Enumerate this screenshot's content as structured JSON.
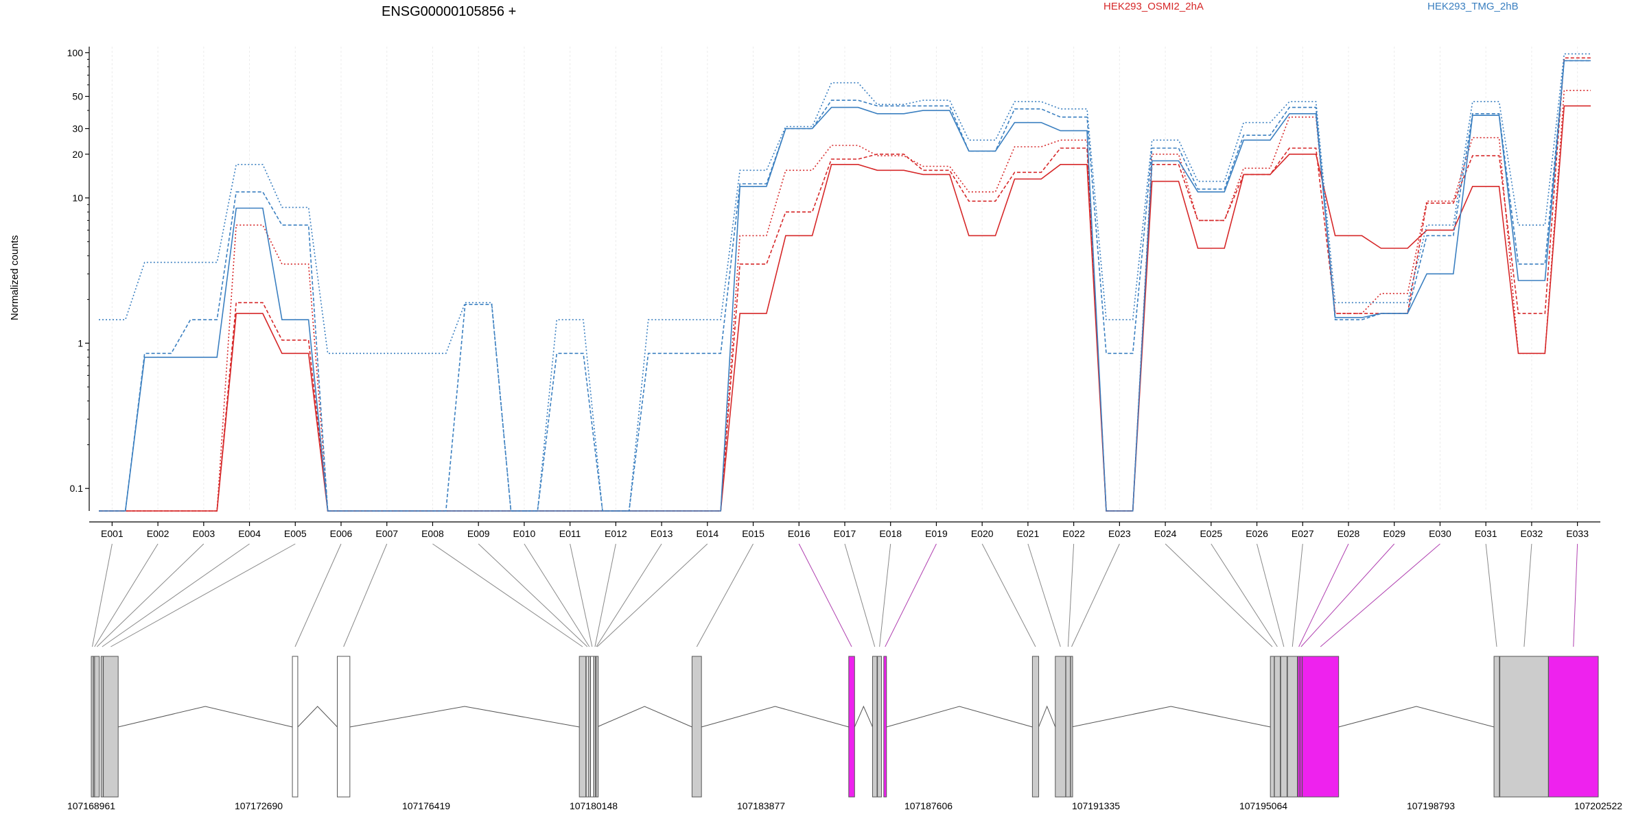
{
  "chart_data": {
    "type": "line",
    "title": "ENSG00000105856 +",
    "ylabel": "Normalized counts",
    "yscale": "log",
    "ylim": [
      0.07,
      110
    ],
    "yticks": [
      0.1,
      1,
      10,
      20,
      30,
      50,
      100
    ],
    "ytick_labels": [
      "0.1",
      "1",
      "10",
      "20",
      "30",
      "50",
      "100"
    ],
    "grid": true,
    "legend_position": "top",
    "colors": {
      "HEK293_OSMI2_2hA": "#d62728",
      "HEK293_TMG_2hB": "#3a7fc0"
    },
    "exons": [
      "E001",
      "E002",
      "E003",
      "E004",
      "E005",
      "E006",
      "E007",
      "E008",
      "E009",
      "E010",
      "E011",
      "E012",
      "E013",
      "E014",
      "E015",
      "E016",
      "E017",
      "E018",
      "E019",
      "E020",
      "E021",
      "E022",
      "E023",
      "E024",
      "E025",
      "E026",
      "E027",
      "E028",
      "E029",
      "E030",
      "E031",
      "E032",
      "E033"
    ],
    "series": [
      {
        "name": "HEK293_OSMI2_2hA",
        "group": "HEK293_OSMI2_2hA",
        "dash": "dotted",
        "values": [
          0.07,
          0.07,
          0.07,
          6.5,
          3.5,
          0.07,
          0.07,
          0.07,
          0.07,
          0.07,
          0.07,
          0.07,
          0.07,
          0.07,
          5.5,
          15.5,
          23,
          19.5,
          16.5,
          11,
          22.5,
          25,
          0.07,
          20,
          7,
          16,
          36,
          1.6,
          2.2,
          9.5,
          26,
          0.85,
          55
        ]
      },
      {
        "name": "HEK293_OSMI2_2hA",
        "group": "HEK293_OSMI2_2hA",
        "dash": "dashed",
        "values": [
          0.07,
          0.07,
          0.07,
          1.9,
          1.05,
          0.07,
          0.07,
          0.07,
          0.07,
          0.07,
          0.07,
          0.07,
          0.07,
          0.07,
          3.5,
          8,
          18.5,
          20,
          15.5,
          9.5,
          15,
          22,
          0.07,
          17,
          7,
          14.5,
          22,
          1.6,
          1.6,
          9.2,
          19.5,
          1.6,
          92
        ]
      },
      {
        "name": "HEK293_OSMI2_2hA",
        "group": "HEK293_OSMI2_2hA",
        "dash": "solid",
        "values": [
          0.07,
          0.07,
          0.07,
          1.6,
          0.85,
          0.07,
          0.07,
          0.07,
          0.07,
          0.07,
          0.07,
          0.07,
          0.07,
          0.07,
          1.6,
          5.5,
          17,
          15.5,
          14.5,
          5.5,
          13.5,
          17,
          0.07,
          13,
          4.5,
          14.5,
          20,
          5.5,
          4.5,
          6,
          12,
          0.85,
          43
        ]
      },
      {
        "name": "HEK293_TMG_2hB",
        "group": "HEK293_TMG_2hB",
        "dash": "dotted",
        "values": [
          1.45,
          3.6,
          3.6,
          17,
          8.6,
          0.85,
          0.85,
          0.85,
          1.9,
          0.07,
          1.45,
          0.07,
          1.45,
          1.45,
          15.5,
          31,
          62,
          44,
          47,
          25,
          46,
          41,
          1.45,
          25,
          13,
          33,
          46,
          1.9,
          1.9,
          6.5,
          46,
          6.5,
          98
        ]
      },
      {
        "name": "HEK293_TMG_2hB",
        "group": "HEK293_TMG_2hB",
        "dash": "dashed",
        "values": [
          0.07,
          0.85,
          1.45,
          11,
          6.5,
          0.07,
          0.07,
          0.07,
          1.85,
          0.07,
          0.85,
          0.07,
          0.85,
          0.85,
          12.5,
          30,
          47,
          43,
          43,
          21,
          41,
          36,
          0.85,
          22,
          11.5,
          27,
          42,
          1.45,
          1.6,
          5.5,
          38,
          3.5,
          88
        ]
      },
      {
        "name": "HEK293_TMG_2hB",
        "group": "HEK293_TMG_2hB",
        "dash": "solid",
        "values": [
          0.07,
          0.8,
          0.8,
          8.5,
          1.45,
          0.07,
          0.07,
          0.07,
          0.07,
          0.07,
          0.07,
          0.07,
          0.07,
          0.07,
          12,
          30,
          42,
          38,
          40,
          21,
          33,
          29,
          0.07,
          18,
          11,
          25,
          38,
          1.5,
          1.6,
          3,
          37,
          2.7,
          88
        ]
      }
    ],
    "gene_coordinate_labels": [
      "107168961",
      "107172690",
      "107176419",
      "107180148",
      "107183877",
      "107187606",
      "107191335",
      "107195064",
      "107198793",
      "107202522"
    ],
    "exon_blocks": [
      {
        "exon": "E001",
        "fill": "#cccccc"
      },
      {
        "exon": "E002",
        "fill": "#cccccc"
      },
      {
        "exon": "E003",
        "fill": "#cccccc"
      },
      {
        "exon": "E004",
        "fill": "#cccccc"
      },
      {
        "exon": "E005",
        "fill": "#cccccc"
      },
      {
        "exon": "E006",
        "fill": "#ffffff"
      },
      {
        "exon": "E007",
        "fill": "#ffffff"
      },
      {
        "exon": "E008",
        "fill": "#cccccc"
      },
      {
        "exon": "E009",
        "fill": "#ffffff"
      },
      {
        "exon": "E010",
        "fill": "#cccccc"
      },
      {
        "exon": "E011",
        "fill": "#ffffff"
      },
      {
        "exon": "E012",
        "fill": "#ffffff"
      },
      {
        "exon": "E013",
        "fill": "#cccccc"
      },
      {
        "exon": "E014",
        "fill": "#cccccc"
      },
      {
        "exon": "E015",
        "fill": "#cccccc"
      },
      {
        "exon": "E016",
        "fill": "#ee22ee"
      },
      {
        "exon": "E017",
        "fill": "#cccccc"
      },
      {
        "exon": "E018",
        "fill": "#cccccc"
      },
      {
        "exon": "E019",
        "fill": "#ee22ee"
      },
      {
        "exon": "E020",
        "fill": "#cccccc"
      },
      {
        "exon": "E021",
        "fill": "#cccccc"
      },
      {
        "exon": "E022",
        "fill": "#cccccc"
      },
      {
        "exon": "E023",
        "fill": "#cccccc"
      },
      {
        "exon": "E024",
        "fill": "#cccccc"
      },
      {
        "exon": "E025",
        "fill": "#cccccc"
      },
      {
        "exon": "E026",
        "fill": "#cccccc"
      },
      {
        "exon": "E027",
        "fill": "#cccccc"
      },
      {
        "exon": "E028",
        "fill": "#ee22ee"
      },
      {
        "exon": "E029",
        "fill": "#ee22ee"
      },
      {
        "exon": "E030",
        "fill": "#ee22ee"
      },
      {
        "exon": "E031",
        "fill": "#cccccc"
      },
      {
        "exon": "E032",
        "fill": "#cccccc"
      },
      {
        "exon": "E033",
        "fill": "#ee22ee"
      }
    ]
  }
}
